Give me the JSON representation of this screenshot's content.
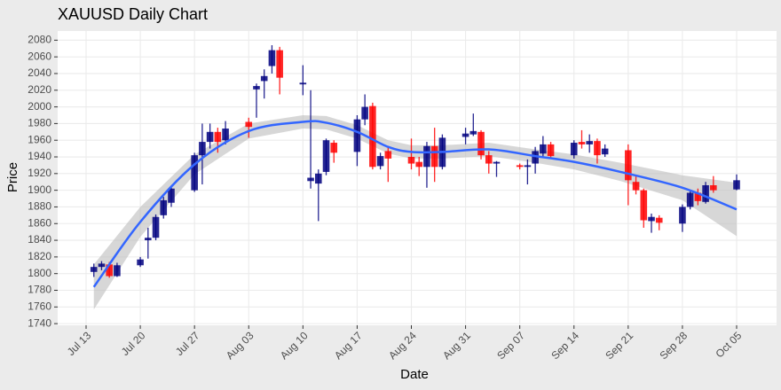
{
  "chart_data": {
    "type": "candlestick",
    "title": "XAUUSD Daily Chart",
    "x_label": "Date",
    "y_label": "Price",
    "x": [
      "Jul 14",
      "Jul 15",
      "Jul 16",
      "Jul 17",
      "Jul 20",
      "Jul 21",
      "Jul 22",
      "Jul 23",
      "Jul 24",
      "Jul 27",
      "Jul 28",
      "Jul 29",
      "Jul 30",
      "Jul 31",
      "Aug 03",
      "Aug 04",
      "Aug 05",
      "Aug 06",
      "Aug 07",
      "Aug 10",
      "Aug 11",
      "Aug 12",
      "Aug 13",
      "Aug 14",
      "Aug 17",
      "Aug 18",
      "Aug 19",
      "Aug 20",
      "Aug 21",
      "Aug 24",
      "Aug 25",
      "Aug 26",
      "Aug 27",
      "Aug 28",
      "Aug 31",
      "Sep 01",
      "Sep 02",
      "Sep 03",
      "Sep 04",
      "Sep 07",
      "Sep 08",
      "Sep 09",
      "Sep 10",
      "Sep 11",
      "Sep 14",
      "Sep 15",
      "Sep 16",
      "Sep 17",
      "Sep 18",
      "Sep 21",
      "Sep 22",
      "Sep 23",
      "Sep 24",
      "Sep 25",
      "Sep 28",
      "Sep 29",
      "Sep 30",
      "Oct 01",
      "Oct 02",
      "Oct 05"
    ],
    "open": [
      1802,
      1808,
      1811,
      1797,
      1810,
      1840,
      1843,
      1870,
      1885,
      1900,
      1942,
      1958,
      1970,
      1960,
      1982,
      2021,
      2031,
      2049,
      2068,
      2027,
      1911,
      1908,
      1922,
      1957,
      1946,
      1985,
      2001,
      1929,
      1947,
      1940,
      1934,
      1928,
      1953,
      1928,
      1964,
      1967,
      1970,
      1942,
      1932,
      1930,
      1928,
      1932,
      1944,
      1955,
      1942,
      1958,
      1955,
      1959,
      1943,
      1948,
      1910,
      1900,
      1863,
      1867,
      1860,
      1880,
      1897,
      1886,
      1906,
      1901
    ],
    "high": [
      1812,
      1815,
      1814,
      1813,
      1820,
      1855,
      1871,
      1892,
      1905,
      1945,
      1980,
      1980,
      1975,
      1983,
      1987,
      2028,
      2045,
      2074,
      2072,
      2050,
      2020,
      1925,
      1962,
      1960,
      1990,
      2015,
      2005,
      1945,
      1952,
      1962,
      1940,
      1958,
      1975,
      1967,
      1975,
      1992,
      1972,
      1947,
      1935,
      1932,
      1937,
      1952,
      1965,
      1958,
      1960,
      1972,
      1967,
      1962,
      1955,
      1955,
      1918,
      1902,
      1872,
      1870,
      1883,
      1900,
      1902,
      1910,
      1917,
      1919
    ],
    "low": [
      1796,
      1804,
      1795,
      1796,
      1808,
      1818,
      1840,
      1866,
      1880,
      1898,
      1907,
      1950,
      1945,
      1955,
      1963,
      1987,
      2010,
      2040,
      2015,
      2014,
      1902,
      1863,
      1918,
      1933,
      1929,
      1978,
      1925,
      1925,
      1910,
      1925,
      1917,
      1903,
      1910,
      1925,
      1955,
      1965,
      1937,
      1920,
      1916,
      1925,
      1907,
      1920,
      1940,
      1938,
      1938,
      1950,
      1945,
      1932,
      1940,
      1882,
      1895,
      1855,
      1849,
      1852,
      1850,
      1877,
      1882,
      1884,
      1897,
      1900
    ],
    "close": [
      1808,
      1812,
      1797,
      1810,
      1817,
      1843,
      1868,
      1888,
      1902,
      1942,
      1958,
      1970,
      1958,
      1974,
      1976,
      2025,
      2037,
      2068,
      2035,
      2029,
      1915,
      1920,
      1960,
      1945,
      1985,
      2000,
      1928,
      1941,
      1938,
      1932,
      1928,
      1953,
      1928,
      1963,
      1968,
      1971,
      1942,
      1932,
      1934,
      1928,
      1930,
      1947,
      1955,
      1941,
      1957,
      1955,
      1959,
      1942,
      1950,
      1912,
      1900,
      1864,
      1868,
      1861,
      1880,
      1897,
      1887,
      1906,
      1900,
      1912
    ],
    "up_color": "#00007f",
    "down_color": "#ff0000",
    "smooth": {
      "color": "#3366ff",
      "band_color": "#bdbdbd",
      "x": [
        "Jul 14",
        "Jul 20",
        "Jul 27",
        "Aug 03",
        "Aug 10",
        "Aug 13",
        "Aug 17",
        "Aug 21",
        "Aug 24",
        "Aug 28",
        "Sep 03",
        "Sep 09",
        "Sep 14",
        "Sep 20",
        "Sep 28",
        "Oct 05"
      ],
      "values": [
        1784,
        1862,
        1931,
        1971,
        1982,
        1981,
        1970,
        1952,
        1946,
        1946,
        1949,
        1941,
        1934,
        1922,
        1903,
        1877
      ],
      "lower": [
        1757,
        1844,
        1919,
        1962,
        1974,
        1973,
        1962,
        1944,
        1938,
        1938,
        1941,
        1933,
        1925,
        1911,
        1888,
        1845
      ],
      "upper": [
        1811,
        1880,
        1943,
        1980,
        1990,
        1989,
        1978,
        1960,
        1954,
        1954,
        1957,
        1949,
        1943,
        1933,
        1918,
        1909
      ]
    },
    "ylim": [
      1738,
      2091
    ],
    "yticks": [
      1740,
      1760,
      1780,
      1800,
      1820,
      1840,
      1860,
      1880,
      1900,
      1920,
      1940,
      1960,
      1980,
      2000,
      2020,
      2040,
      2060,
      2080
    ],
    "xticks": [
      "Jul 13",
      "Jul 20",
      "Jul 27",
      "Aug 03",
      "Aug 10",
      "Aug 17",
      "Aug 24",
      "Aug 31",
      "Sep 07",
      "Sep 14",
      "Sep 21",
      "Sep 28",
      "Oct 05"
    ],
    "grid": true
  }
}
